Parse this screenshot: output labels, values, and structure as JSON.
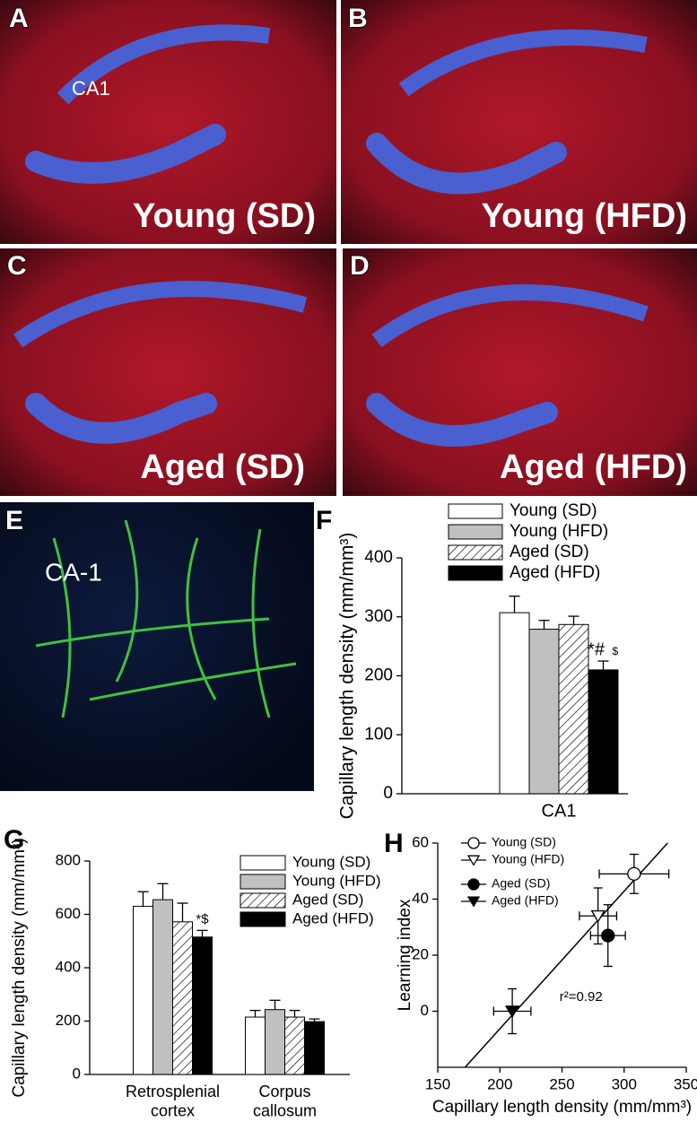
{
  "images": [
    {
      "letter": "A",
      "caption": "Young (SD)",
      "region": "CA1"
    },
    {
      "letter": "B",
      "caption": "Young (HFD)"
    },
    {
      "letter": "C",
      "caption": "Aged (SD)"
    },
    {
      "letter": "D",
      "caption": "Aged (HFD)"
    },
    {
      "letter": "E",
      "region": "CA-1"
    }
  ],
  "chart_data": [
    {
      "type": "bar",
      "panel": "F",
      "ylabel": "Capillary length density (mm/mm³)",
      "categories": [
        "CA1"
      ],
      "ylim": [
        0,
        400
      ],
      "yticks": [
        0,
        100,
        200,
        300,
        400
      ],
      "series": [
        {
          "name": "Young (SD)",
          "color": "#ffffff",
          "values": [
            307
          ],
          "errors": [
            28
          ]
        },
        {
          "name": "Young (HFD)",
          "color": "#c0c0c0",
          "values": [
            279
          ],
          "errors": [
            15
          ]
        },
        {
          "name": "Aged (SD)",
          "color": "#ffffff",
          "hatch": true,
          "values": [
            287
          ],
          "errors": [
            14
          ]
        },
        {
          "name": "Aged (HFD)",
          "color": "#000000",
          "values": [
            210
          ],
          "errors": [
            15
          ],
          "annotations": [
            "*#",
            "$"
          ]
        }
      ]
    },
    {
      "type": "bar",
      "panel": "G",
      "ylabel": "Capillary length density (mm/mm³)",
      "categories": [
        "Retrosplenial cortex",
        "Corpus callosum"
      ],
      "ylim": [
        0,
        800
      ],
      "yticks": [
        0,
        200,
        400,
        600,
        800
      ],
      "series": [
        {
          "name": "Young (SD)",
          "color": "#ffffff",
          "values": [
            630,
            215
          ],
          "errors": [
            55,
            25
          ]
        },
        {
          "name": "Young (HFD)",
          "color": "#c0c0c0",
          "values": [
            655,
            243
          ],
          "errors": [
            60,
            35
          ]
        },
        {
          "name": "Aged (SD)",
          "color": "#ffffff",
          "hatch": true,
          "values": [
            572,
            215
          ],
          "errors": [
            70,
            25
          ]
        },
        {
          "name": "Aged (HFD)",
          "color": "#000000",
          "values": [
            515,
            198
          ],
          "errors": [
            25,
            10
          ],
          "annotations": [
            "*$",
            null
          ]
        }
      ]
    },
    {
      "type": "scatter",
      "panel": "H",
      "xlabel": "Capillary length density (mm/mm³)",
      "ylabel": "Learning index",
      "xlim": [
        150,
        350
      ],
      "xticks": [
        150,
        200,
        250,
        300,
        350
      ],
      "ylim": [
        -20,
        60
      ],
      "yticks": [
        0,
        20,
        40,
        60
      ],
      "series": [
        {
          "name": "Young (SD)",
          "marker": "circle",
          "filled": false,
          "x": [
            308
          ],
          "y": [
            49
          ],
          "xerr": [
            28
          ],
          "yerr": [
            7
          ]
        },
        {
          "name": "Young (HFD)",
          "marker": "triangle-down",
          "filled": false,
          "x": [
            279
          ],
          "y": [
            34
          ],
          "xerr": [
            15
          ],
          "yerr": [
            10
          ]
        },
        {
          "name": "Aged (SD)",
          "marker": "circle",
          "filled": true,
          "x": [
            287
          ],
          "y": [
            27
          ],
          "xerr": [
            14
          ],
          "yerr": [
            11
          ]
        },
        {
          "name": "Aged (HFD)",
          "marker": "triangle-down",
          "filled": true,
          "x": [
            210
          ],
          "y": [
            0
          ],
          "xerr": [
            15
          ],
          "yerr": [
            8
          ]
        }
      ],
      "fit_line": {
        "x": [
          172,
          335
        ],
        "y": [
          -20,
          60
        ]
      },
      "annotation": "r²=0.92"
    }
  ]
}
